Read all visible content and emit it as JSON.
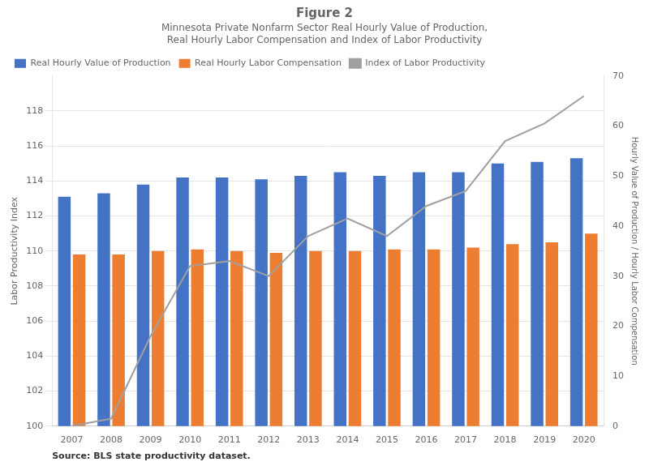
{
  "chart_data": {
    "type": "bar",
    "title": "Figure 2",
    "subtitle": [
      "Minnesota Private Nonfarm Sector Real Hourly Value of Production,",
      "Real Hourly Labor Compensation and Index of Labor Productivity"
    ],
    "annotations": [
      "Source: BLS state productivity dataset."
    ],
    "categories": [
      "2007",
      "2008",
      "2009",
      "2010",
      "2011",
      "2012",
      "2013",
      "2014",
      "2015",
      "2016",
      "2017",
      "2018",
      "2019",
      "2020"
    ],
    "series": [
      {
        "name": "Real Hourly Value of Production",
        "color": "#4472C4",
        "values": [
          113.1,
          113.3,
          113.8,
          114.2,
          114.2,
          114.1,
          114.3,
          114.5,
          114.3,
          114.5,
          114.5,
          115.0,
          115.1,
          115.3
        ]
      },
      {
        "name": "Real Hourly Labor Compensation",
        "color": "#ED7D31",
        "values": [
          109.8,
          109.8,
          110.0,
          110.1,
          110.0,
          109.9,
          110.0,
          110.0,
          110.1,
          110.1,
          110.2,
          110.4,
          110.5,
          111.0
        ]
      },
      {
        "name": "Index of Labor Productivity",
        "color": "#A0A0A0",
        "type": "line",
        "axis": "y2",
        "values": [
          0.0,
          1.5,
          18.0,
          32.0,
          33.0,
          30.0,
          38.0,
          41.5,
          38.0,
          44.0,
          47.0,
          57.0,
          60.5,
          66.0
        ]
      }
    ],
    "ylabel": "Labor Productivity Index",
    "y2label": "Hourly Value of Production / Hourly Labor Compensation",
    "ylim": [
      100,
      120
    ],
    "yticks": [
      100,
      102,
      104,
      106,
      108,
      110,
      112,
      114,
      116,
      118
    ],
    "y2lim": [
      0,
      70
    ],
    "y2ticks": [
      0,
      10,
      20,
      30,
      40,
      50,
      60,
      70
    ],
    "grid": true,
    "legend": "upper left"
  }
}
